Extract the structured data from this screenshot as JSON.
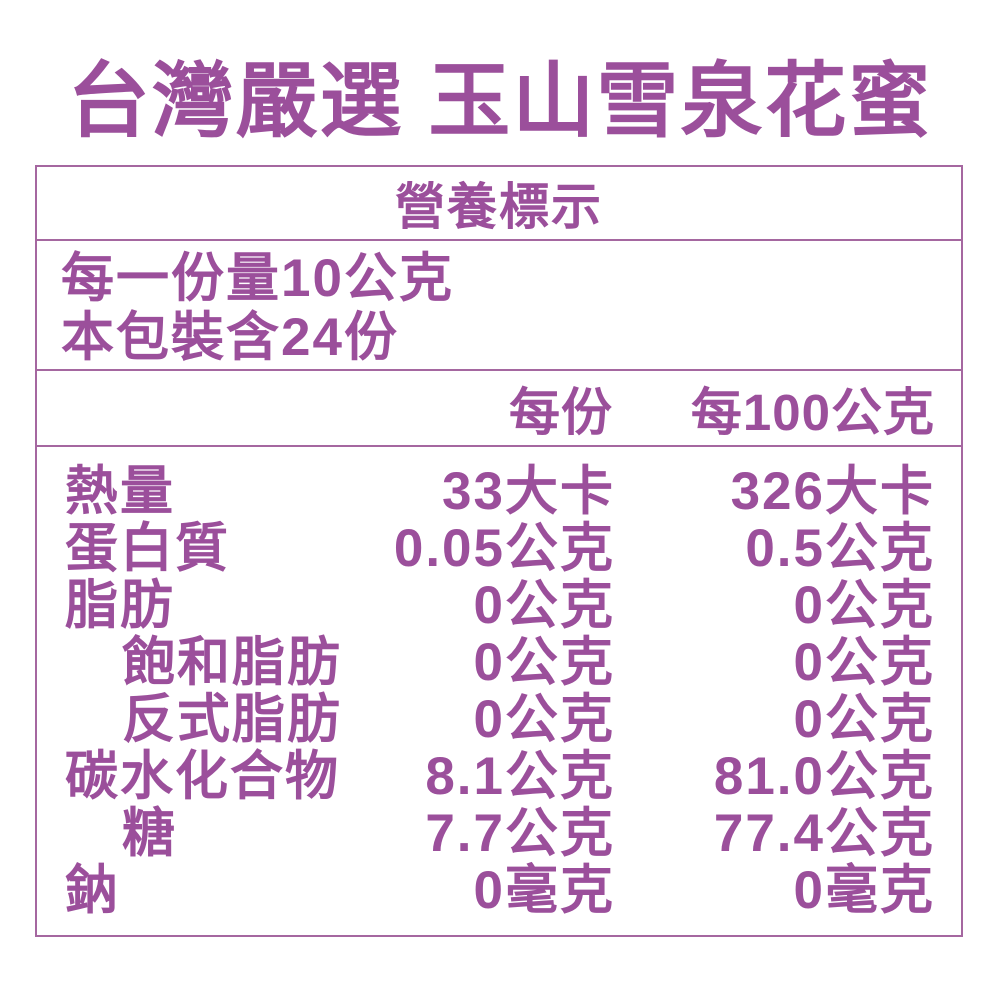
{
  "colors": {
    "text_purple": "#9B4F9B",
    "border_purple": "#A567A0",
    "background": "#FFFFFF"
  },
  "title": "台灣嚴選 玉山雪泉花蜜",
  "nutrition_table": {
    "heading": "營養標示",
    "serving_size": "每一份量10公克",
    "servings_per_package": "本包裝含24份",
    "columns": {
      "per_serving": "每份",
      "per_100g": "每100公克"
    },
    "rows": [
      {
        "label": "熱量",
        "indent": false,
        "per_serving": "33大卡",
        "per_100g": "326大卡"
      },
      {
        "label": "蛋白質",
        "indent": false,
        "per_serving": "0.05公克",
        "per_100g": "0.5公克"
      },
      {
        "label": "脂肪",
        "indent": false,
        "per_serving": "0公克",
        "per_100g": "0公克"
      },
      {
        "label": "飽和脂肪",
        "indent": true,
        "per_serving": "0公克",
        "per_100g": "0公克"
      },
      {
        "label": "反式脂肪",
        "indent": true,
        "per_serving": "0公克",
        "per_100g": "0公克"
      },
      {
        "label": "碳水化合物",
        "indent": false,
        "per_serving": "8.1公克",
        "per_100g": "81.0公克"
      },
      {
        "label": "糖",
        "indent": true,
        "per_serving": "7.7公克",
        "per_100g": "77.4公克"
      },
      {
        "label": "鈉",
        "indent": false,
        "per_serving": "0毫克",
        "per_100g": "0毫克"
      }
    ]
  }
}
